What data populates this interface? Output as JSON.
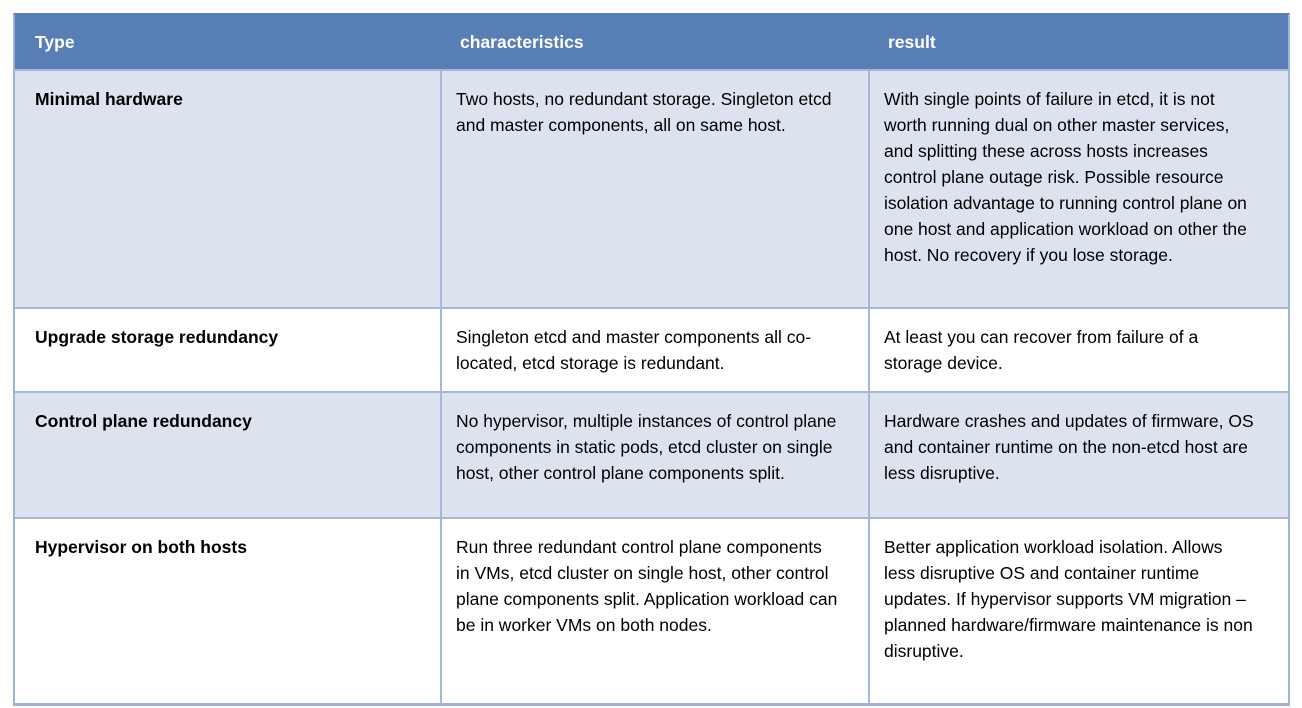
{
  "table": {
    "columns": [
      {
        "label": "Type"
      },
      {
        "label": "characteristics"
      },
      {
        "label": "result"
      }
    ],
    "rows": [
      {
        "type": "Minimal hardware",
        "characteristics": "Two hosts, no redundant storage. Singleton etcd and master components, all on same host.",
        "result": "With single points of failure in etcd, it is not worth running dual on other master services, and splitting these across hosts increases control plane outage risk. Possible resource isolation advantage to running control plane on one host and application workload on other the host. No recovery if you lose storage."
      },
      {
        "type": "Upgrade storage redundancy",
        "characteristics": "Singleton etcd and master components all co-located, etcd storage is redundant.",
        "result": "At least you can recover from failure of a storage device."
      },
      {
        "type": "Control plane redundancy",
        "characteristics": "No hypervisor, multiple instances of control plane components in static pods, etcd cluster on single host, other control plane components split.",
        "result": "Hardware crashes and updates of firmware, OS and container runtime on the non-etcd host are less disruptive."
      },
      {
        "type": "Hypervisor on both hosts",
        "characteristics": "Run three redundant control plane components in VMs, etcd cluster on single host, other control plane components split. Application workload can be in worker VMs on both nodes.",
        "result": "Better application workload isolation. Allows less disruptive OS and container runtime updates. If hypervisor supports VM migration – planned hardware/firmware maintenance is non disruptive."
      }
    ],
    "colors": {
      "header_bg": "#577fb6",
      "header_text": "#ffffff",
      "row_alt_bg": "#dde3ee",
      "row_bg": "#ffffff",
      "grid_line": "#a3b8da",
      "outer_border": "#9db3d8",
      "body_text": "#000000"
    }
  }
}
